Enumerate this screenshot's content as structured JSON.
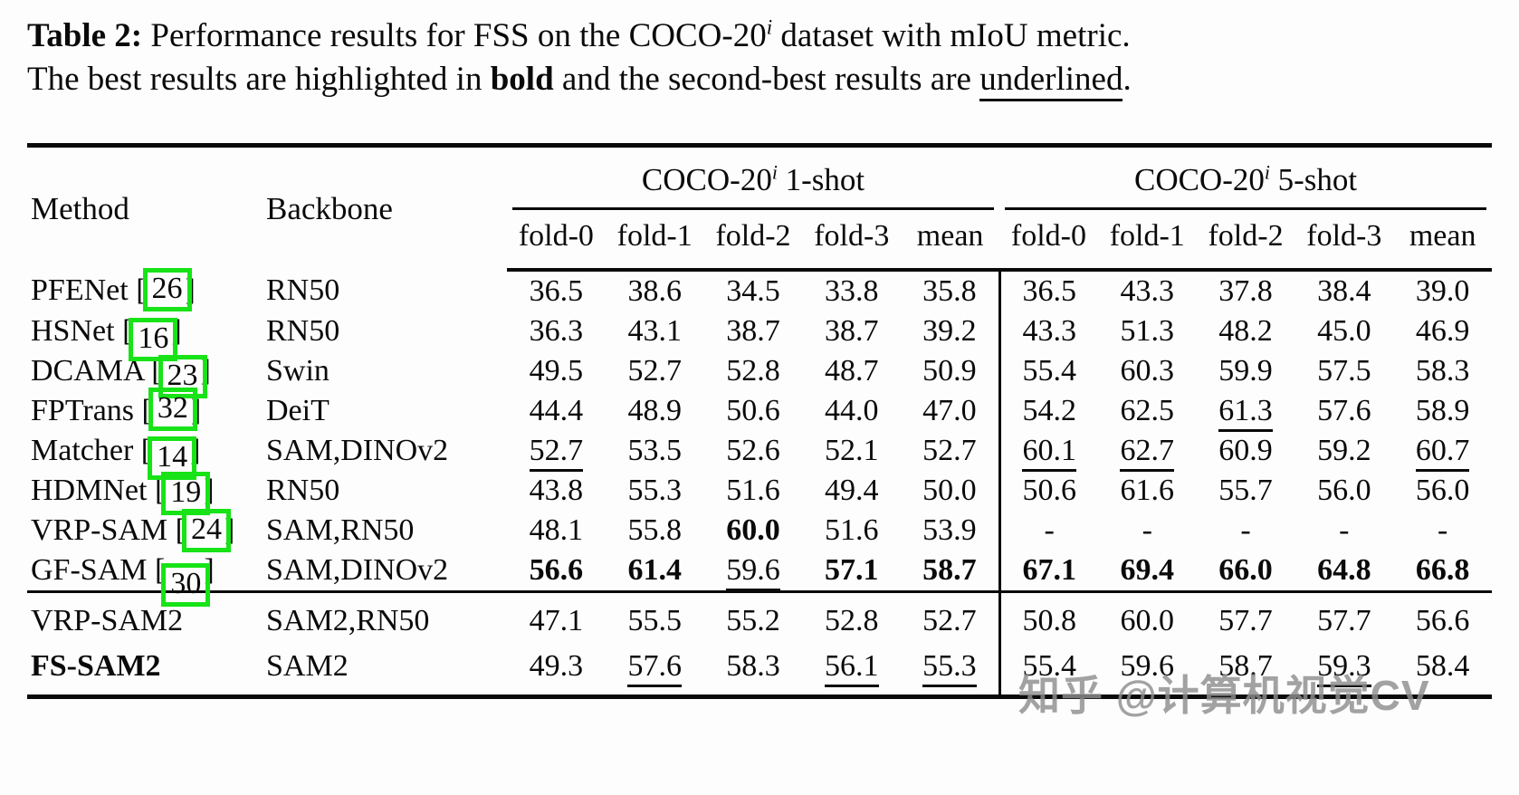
{
  "caption": {
    "line1": {
      "label": "Table 2:",
      "text_a": " Performance results for FSS on the COCO-20",
      "sup": "i",
      "text_b": " dataset with mIoU metric."
    },
    "line2": {
      "text_a": "The best results are highlighted in ",
      "bold_word": "bold",
      "text_b": " and the second-best results are ",
      "underline_word": "underlined",
      "text_c": "."
    }
  },
  "table": {
    "method_header": "Method",
    "backbone_header": "Backbone",
    "groups": [
      {
        "name": "COCO-20",
        "sup": "i",
        "suffix": " 1-shot"
      },
      {
        "name": "COCO-20",
        "sup": "i",
        "suffix": " 5-shot"
      }
    ],
    "subheaders": [
      "fold-0",
      "fold-1",
      "fold-2",
      "fold-3",
      "mean"
    ],
    "rows_main": [
      {
        "method": "PFENet",
        "cite": "26",
        "backbone": "RN50",
        "one_shot": [
          {
            "v": "36.5"
          },
          {
            "v": "38.6"
          },
          {
            "v": "34.5"
          },
          {
            "v": "33.8"
          },
          {
            "v": "35.8"
          }
        ],
        "five_shot": [
          {
            "v": "36.5"
          },
          {
            "v": "43.3"
          },
          {
            "v": "37.8"
          },
          {
            "v": "38.4"
          },
          {
            "v": "39.0"
          }
        ]
      },
      {
        "method": "HSNet",
        "cite": "16",
        "backbone": "RN50",
        "one_shot": [
          {
            "v": "36.3"
          },
          {
            "v": "43.1"
          },
          {
            "v": "38.7"
          },
          {
            "v": "38.7"
          },
          {
            "v": "39.2"
          }
        ],
        "five_shot": [
          {
            "v": "43.3"
          },
          {
            "v": "51.3"
          },
          {
            "v": "48.2"
          },
          {
            "v": "45.0"
          },
          {
            "v": "46.9"
          }
        ]
      },
      {
        "method": "DCAMA",
        "cite": "23",
        "backbone": "Swin",
        "one_shot": [
          {
            "v": "49.5"
          },
          {
            "v": "52.7"
          },
          {
            "v": "52.8"
          },
          {
            "v": "48.7"
          },
          {
            "v": "50.9"
          }
        ],
        "five_shot": [
          {
            "v": "55.4"
          },
          {
            "v": "60.3"
          },
          {
            "v": "59.9"
          },
          {
            "v": "57.5"
          },
          {
            "v": "58.3"
          }
        ]
      },
      {
        "method": "FPTrans",
        "cite": "32",
        "backbone": "DeiT",
        "one_shot": [
          {
            "v": "44.4"
          },
          {
            "v": "48.9"
          },
          {
            "v": "50.6"
          },
          {
            "v": "44.0"
          },
          {
            "v": "47.0"
          }
        ],
        "five_shot": [
          {
            "v": "54.2"
          },
          {
            "v": "62.5"
          },
          {
            "v": "61.3",
            "u": true
          },
          {
            "v": "57.6"
          },
          {
            "v": "58.9"
          }
        ]
      },
      {
        "method": "Matcher",
        "cite": "14",
        "backbone": "SAM,DINOv2",
        "one_shot": [
          {
            "v": "52.7",
            "u": true
          },
          {
            "v": "53.5"
          },
          {
            "v": "52.6"
          },
          {
            "v": "52.1"
          },
          {
            "v": "52.7"
          }
        ],
        "five_shot": [
          {
            "v": "60.1",
            "u": true
          },
          {
            "v": "62.7",
            "u": true
          },
          {
            "v": "60.9"
          },
          {
            "v": "59.2"
          },
          {
            "v": "60.7",
            "u": true
          }
        ]
      },
      {
        "method": "HDMNet",
        "cite": "19",
        "backbone": "RN50",
        "one_shot": [
          {
            "v": "43.8"
          },
          {
            "v": "55.3"
          },
          {
            "v": "51.6"
          },
          {
            "v": "49.4"
          },
          {
            "v": "50.0"
          }
        ],
        "five_shot": [
          {
            "v": "50.6"
          },
          {
            "v": "61.6"
          },
          {
            "v": "55.7"
          },
          {
            "v": "56.0"
          },
          {
            "v": "56.0"
          }
        ]
      },
      {
        "method": "VRP-SAM",
        "cite": "24",
        "backbone": "SAM,RN50",
        "one_shot": [
          {
            "v": "48.1"
          },
          {
            "v": "55.8"
          },
          {
            "v": "60.0",
            "b": true
          },
          {
            "v": "51.6"
          },
          {
            "v": "53.9"
          }
        ],
        "five_shot": [
          {
            "v": "-"
          },
          {
            "v": "-"
          },
          {
            "v": "-"
          },
          {
            "v": "-"
          },
          {
            "v": "-"
          }
        ]
      },
      {
        "method": "GF-SAM",
        "cite": "30",
        "backbone": "SAM,DINOv2",
        "one_shot": [
          {
            "v": "56.6",
            "b": true
          },
          {
            "v": "61.4",
            "b": true
          },
          {
            "v": "59.6",
            "u": true
          },
          {
            "v": "57.1",
            "b": true
          },
          {
            "v": "58.7",
            "b": true
          }
        ],
        "five_shot": [
          {
            "v": "67.1",
            "b": true
          },
          {
            "v": "69.4",
            "b": true
          },
          {
            "v": "66.0",
            "b": true
          },
          {
            "v": "64.8",
            "b": true
          },
          {
            "v": "66.8",
            "b": true
          }
        ]
      }
    ],
    "rows_new": [
      {
        "method": "VRP-SAM2",
        "backbone": "SAM2,RN50",
        "one_shot": [
          {
            "v": "47.1"
          },
          {
            "v": "55.5"
          },
          {
            "v": "55.2"
          },
          {
            "v": "52.8"
          },
          {
            "v": "52.7"
          }
        ],
        "five_shot": [
          {
            "v": "50.8"
          },
          {
            "v": "60.0"
          },
          {
            "v": "57.7"
          },
          {
            "v": "57.7"
          },
          {
            "v": "56.6"
          }
        ]
      },
      {
        "method": "FS-SAM2",
        "method_bold": true,
        "backbone": "SAM2",
        "one_shot": [
          {
            "v": "49.3"
          },
          {
            "v": "57.6",
            "u": true
          },
          {
            "v": "58.3"
          },
          {
            "v": "56.1",
            "u": true
          },
          {
            "v": "55.3",
            "u": true
          }
        ],
        "five_shot": [
          {
            "v": "55.4"
          },
          {
            "v": "59.6"
          },
          {
            "v": "58.7"
          },
          {
            "v": "59.3",
            "u": true
          },
          {
            "v": "58.4"
          }
        ]
      }
    ]
  },
  "watermark": "知乎 @计算机视觉CV",
  "colors": {
    "annotation_green": "#17e317",
    "watermark_gray": "#8f8f8f",
    "text_black": "#0a0a0a"
  }
}
